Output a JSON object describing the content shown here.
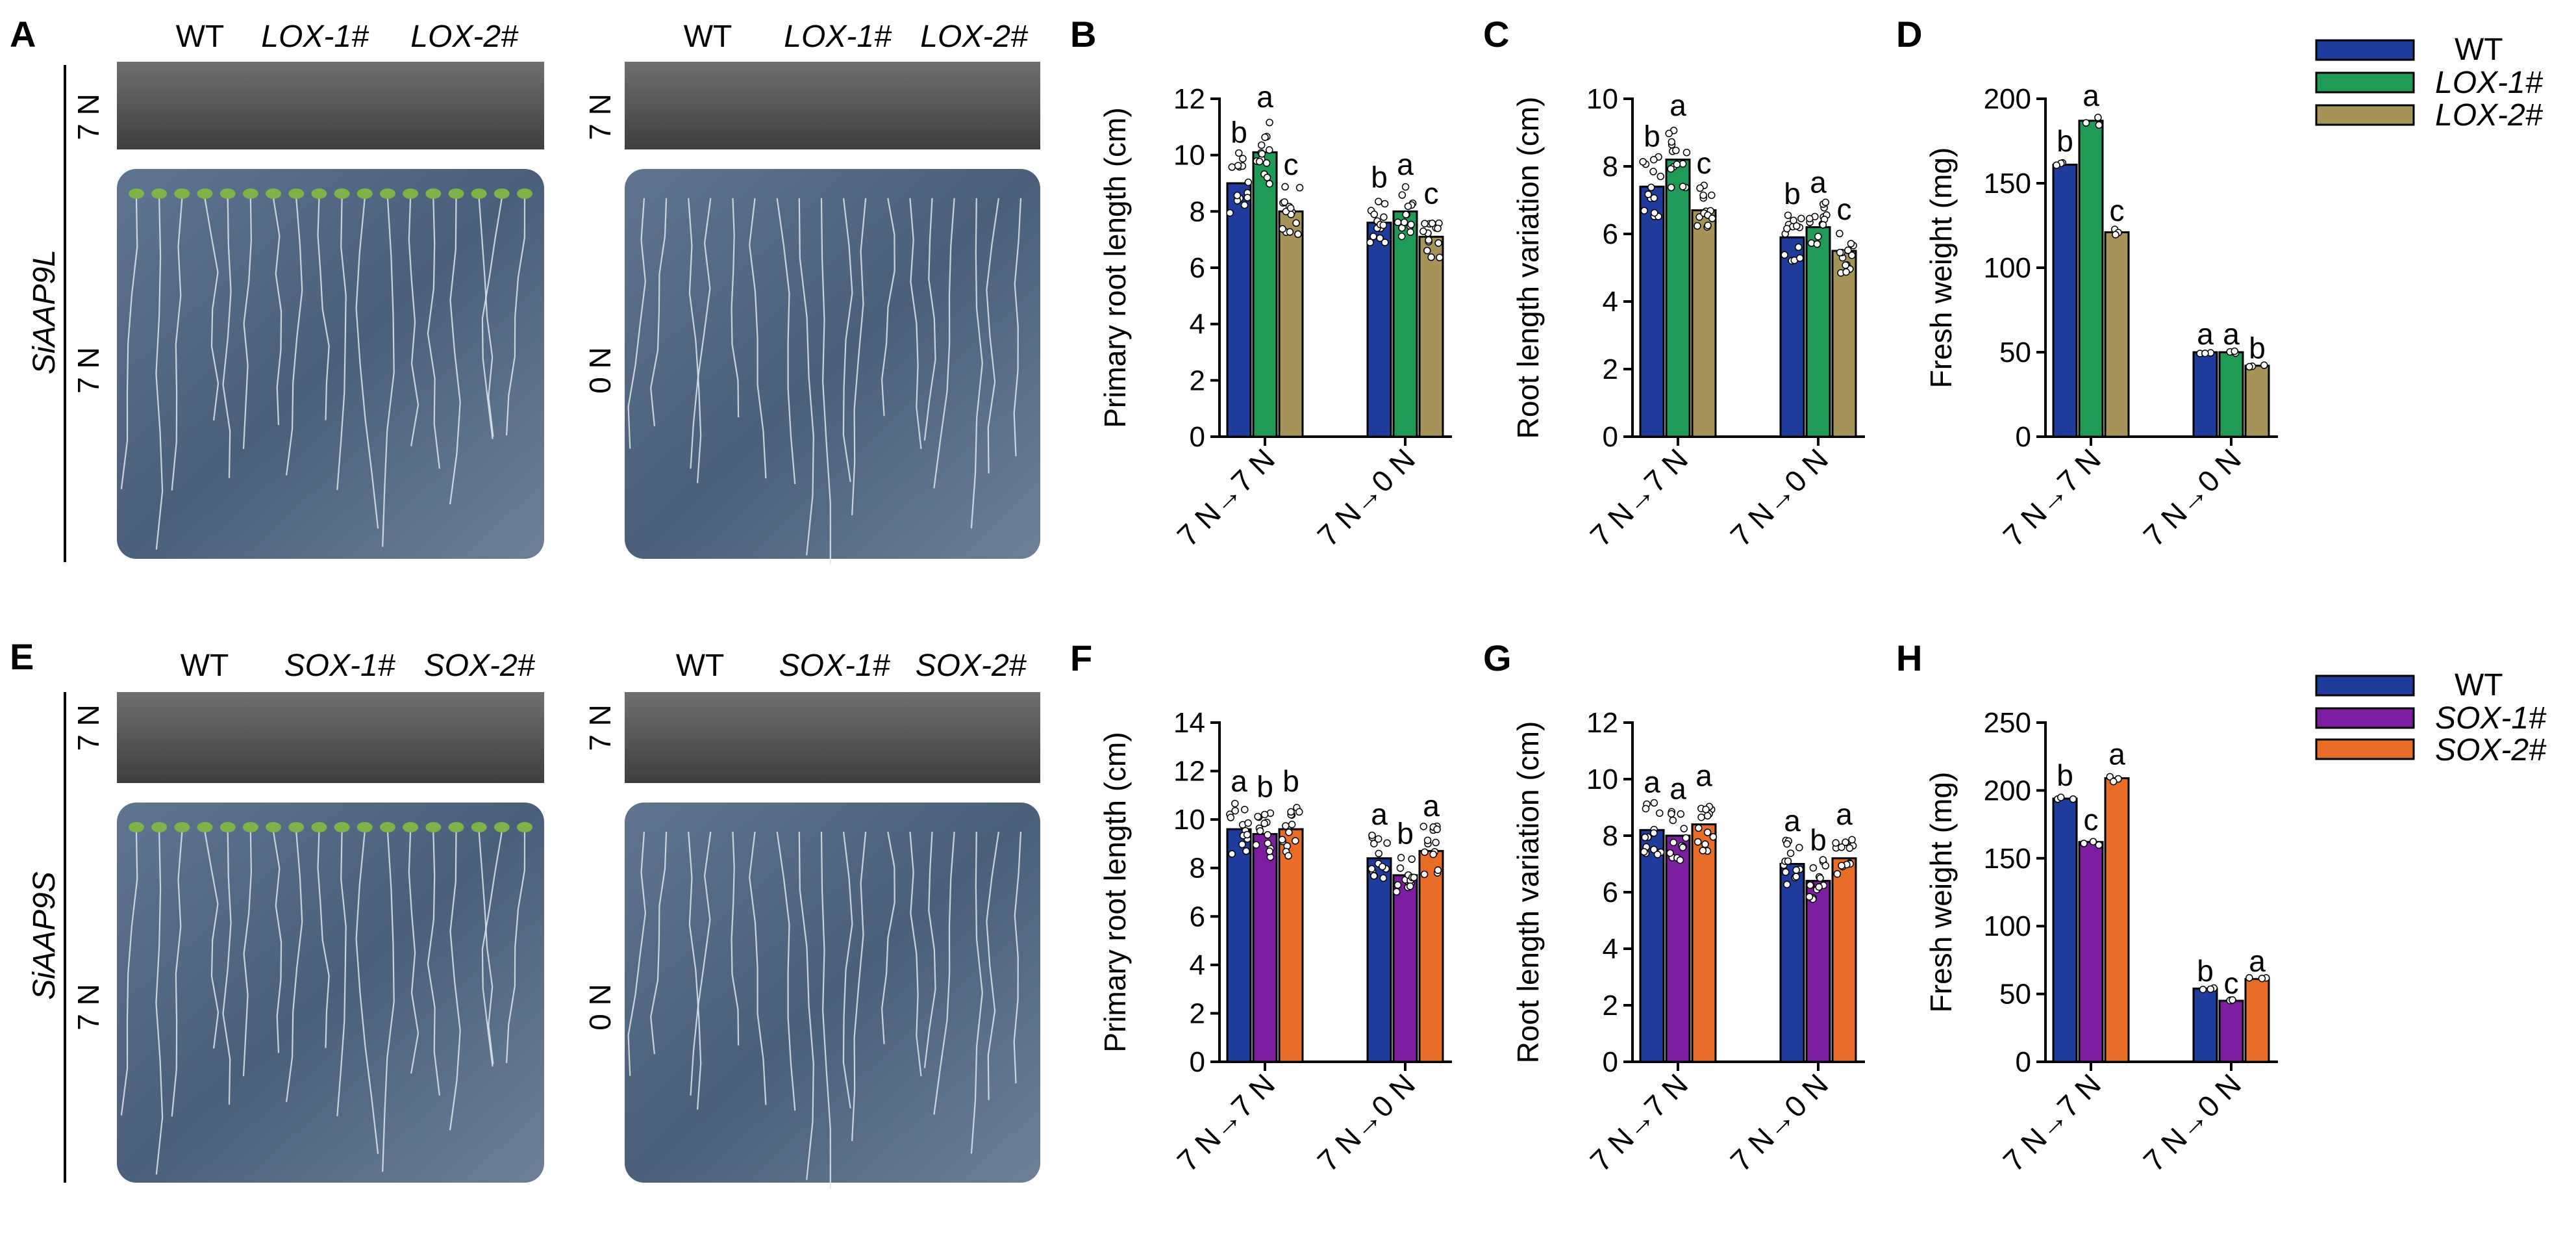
{
  "colors": {
    "wt": "#1f3c9c",
    "lox1": "#1f9a57",
    "lox2": "#a5935a",
    "sox1": "#7d1ea0",
    "sox2": "#e66c28"
  },
  "photo_panels": {
    "row1": {
      "panel_letter": "A",
      "side_label": "SiAAP9L",
      "plates": [
        {
          "genotypes": [
            "WT",
            "LOX-1#",
            "LOX-2#"
          ],
          "top_condition": "7 N",
          "bottom_condition": "7 N"
        },
        {
          "genotypes": [
            "WT",
            "LOX-1#",
            "LOX-2#"
          ],
          "top_condition": "7 N",
          "bottom_condition": "0 N"
        }
      ]
    },
    "row2": {
      "panel_letter": "E",
      "side_label": "SiAAP9S",
      "plates": [
        {
          "genotypes": [
            "WT",
            "SOX-1#",
            "SOX-2#"
          ],
          "top_condition": "7 N",
          "bottom_condition": "7 N"
        },
        {
          "genotypes": [
            "WT",
            "SOX-1#",
            "SOX-2#"
          ],
          "top_condition": "7 N",
          "bottom_condition": "0 N"
        }
      ]
    }
  },
  "legends": [
    {
      "entries": [
        "WT",
        "LOX-1#",
        "LOX-2#"
      ],
      "colors": [
        "#1f3c9c",
        "#1f9a57",
        "#a5935a"
      ]
    },
    {
      "entries": [
        "WT",
        "SOX-1#",
        "SOX-2#"
      ],
      "colors": [
        "#1f3c9c",
        "#7d1ea0",
        "#e66c28"
      ]
    }
  ],
  "chart_data": [
    {
      "panel": "B",
      "type": "bar",
      "ylabel": "Primary root length (cm)",
      "categories": [
        "7 N→7 N",
        "7 N→0 N"
      ],
      "ylim": [
        0,
        12
      ],
      "yticks": [
        0,
        2,
        4,
        6,
        8,
        10,
        12
      ],
      "series": [
        {
          "name": "WT",
          "values": [
            9.0,
            7.6
          ],
          "letters": [
            "b",
            "b"
          ]
        },
        {
          "name": "LOX-1#",
          "values": [
            10.1,
            8.0
          ],
          "letters": [
            "a",
            "a"
          ]
        },
        {
          "name": "LOX-2#",
          "values": [
            8.0,
            7.1
          ],
          "letters": [
            "c",
            "c"
          ]
        }
      ]
    },
    {
      "panel": "C",
      "type": "bar",
      "ylabel": "Root length variation (cm)",
      "categories": [
        "7 N→7 N",
        "7 N→0 N"
      ],
      "ylim": [
        0,
        10
      ],
      "yticks": [
        0,
        2,
        4,
        6,
        8,
        10
      ],
      "series": [
        {
          "name": "WT",
          "values": [
            7.4,
            5.9
          ],
          "letters": [
            "b",
            "b"
          ]
        },
        {
          "name": "LOX-1#",
          "values": [
            8.2,
            6.2
          ],
          "letters": [
            "a",
            "a"
          ]
        },
        {
          "name": "LOX-2#",
          "values": [
            6.7,
            5.5
          ],
          "letters": [
            "c",
            "c"
          ]
        }
      ]
    },
    {
      "panel": "D",
      "type": "bar",
      "ylabel": "Fresh weight (mg)",
      "categories": [
        "7 N→7 N",
        "7 N→0 N"
      ],
      "ylim": [
        0,
        200
      ],
      "yticks": [
        0,
        50,
        100,
        150,
        200
      ],
      "series": [
        {
          "name": "WT",
          "values": [
            161,
            50
          ],
          "letters": [
            "b",
            "a"
          ]
        },
        {
          "name": "LOX-1#",
          "values": [
            187,
            50
          ],
          "letters": [
            "a",
            "a"
          ]
        },
        {
          "name": "LOX-2#",
          "values": [
            121,
            42
          ],
          "letters": [
            "c",
            "b"
          ]
        }
      ]
    },
    {
      "panel": "F",
      "type": "bar",
      "ylabel": "Primary root length (cm)",
      "categories": [
        "7 N→7 N",
        "7 N→0 N"
      ],
      "ylim": [
        0,
        14
      ],
      "yticks": [
        0,
        2,
        4,
        6,
        8,
        10,
        12,
        14
      ],
      "series": [
        {
          "name": "WT",
          "values": [
            9.6,
            8.4
          ],
          "letters": [
            "a",
            "a"
          ]
        },
        {
          "name": "SOX-1#",
          "values": [
            9.4,
            7.7
          ],
          "letters": [
            "b",
            "b"
          ]
        },
        {
          "name": "SOX-2#",
          "values": [
            9.6,
            8.7
          ],
          "letters": [
            "b",
            "a"
          ]
        }
      ]
    },
    {
      "panel": "G",
      "type": "bar",
      "ylabel": "Root length variation (cm)",
      "categories": [
        "7 N→7 N",
        "7 N→0 N"
      ],
      "ylim": [
        0,
        12
      ],
      "yticks": [
        0,
        2,
        4,
        6,
        8,
        10,
        12
      ],
      "series": [
        {
          "name": "WT",
          "values": [
            8.2,
            7.0
          ],
          "letters": [
            "a",
            "a"
          ]
        },
        {
          "name": "SOX-1#",
          "values": [
            8.0,
            6.4
          ],
          "letters": [
            "a",
            "b"
          ]
        },
        {
          "name": "SOX-2#",
          "values": [
            8.4,
            7.2
          ],
          "letters": [
            "a",
            "a"
          ]
        }
      ]
    },
    {
      "panel": "H",
      "type": "bar",
      "ylabel": "Fresh weight (mg)",
      "categories": [
        "7 N→7 N",
        "7 N→0 N"
      ],
      "ylim": [
        0,
        250
      ],
      "yticks": [
        0,
        50,
        100,
        150,
        200,
        250
      ],
      "series": [
        {
          "name": "WT",
          "values": [
            194,
            54
          ],
          "letters": [
            "b",
            "b"
          ]
        },
        {
          "name": "SOX-1#",
          "values": [
            162,
            45
          ],
          "letters": [
            "c",
            "c"
          ]
        },
        {
          "name": "SOX-2#",
          "values": [
            209,
            61
          ],
          "letters": [
            "a",
            "a"
          ]
        }
      ]
    }
  ]
}
